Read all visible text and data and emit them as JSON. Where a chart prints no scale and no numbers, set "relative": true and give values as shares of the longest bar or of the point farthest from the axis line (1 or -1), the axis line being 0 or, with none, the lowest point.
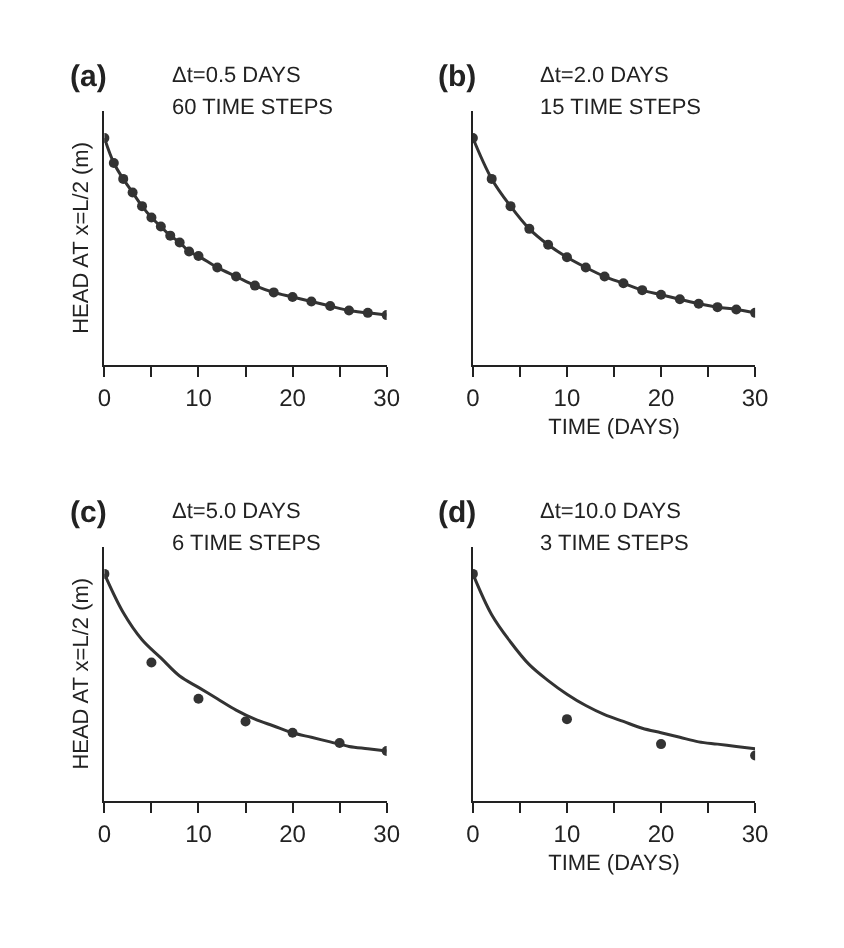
{
  "chart_data": [
    {
      "type": "line",
      "title": "(a)",
      "ylabel": "HEAD AT x=L/2 (m)",
      "relative": true,
      "annotations": [
        "Δt=0.5 DAYS",
        "60 TIME STEPS"
      ],
      "xlim": [
        0,
        30
      ],
      "xticks": [
        0,
        {
          "value": 5,
          "label": null
        },
        10,
        {
          "value": 15,
          "label": null
        },
        20,
        {
          "value": 25,
          "label": null
        },
        30
      ],
      "tick_labels": "x",
      "series": [
        {
          "marker": "circle",
          "color": "#333333",
          "x": [
            0,
            1,
            2,
            3,
            4,
            5,
            6,
            7,
            8,
            9,
            10,
            12,
            14,
            16,
            18,
            20,
            22,
            24,
            26,
            28,
            30
          ],
          "values": [
            1.0,
            0.89,
            0.82,
            0.76,
            0.7,
            0.65,
            0.61,
            0.57,
            0.54,
            0.5,
            0.48,
            0.43,
            0.39,
            0.35,
            0.32,
            0.3,
            0.28,
            0.26,
            0.24,
            0.23,
            0.22
          ]
        }
      ]
    },
    {
      "type": "line",
      "title": "(b)",
      "xlabel": "TIME (DAYS)",
      "relative": true,
      "annotations": [
        "Δt=2.0 DAYS",
        "15 TIME STEPS"
      ],
      "xlim": [
        0,
        30
      ],
      "xticks": [
        0,
        {
          "value": 5,
          "label": null
        },
        10,
        {
          "value": 15,
          "label": null
        },
        20,
        {
          "value": 25,
          "label": null
        },
        30
      ],
      "tick_labels": "x",
      "series": [
        {
          "marker": "circle",
          "color": "#333333",
          "x": [
            0,
            2,
            4,
            6,
            8,
            10,
            12,
            14,
            16,
            18,
            20,
            22,
            24,
            26,
            28,
            30
          ],
          "values": [
            1.0,
            0.82,
            0.7,
            0.6,
            0.53,
            0.475,
            0.43,
            0.39,
            0.36,
            0.33,
            0.31,
            0.29,
            0.27,
            0.255,
            0.245,
            0.23
          ]
        }
      ]
    },
    {
      "type": "line",
      "title": "(c)",
      "ylabel": "HEAD AT x=L/2 (m)",
      "relative": true,
      "annotations": [
        "Δt=5.0 DAYS",
        "6 TIME STEPS"
      ],
      "xlim": [
        0,
        30
      ],
      "xticks": [
        0,
        {
          "value": 5,
          "label": null
        },
        10,
        {
          "value": 15,
          "label": null
        },
        20,
        {
          "value": 25,
          "label": null
        },
        30
      ],
      "tick_labels": "x",
      "series": [
        {
          "marker": "none",
          "color": "#333333",
          "x": [
            0,
            2,
            4,
            6,
            8,
            10,
            12,
            14,
            16,
            18,
            20,
            22,
            24,
            26,
            28,
            30
          ],
          "values": [
            1.0,
            0.83,
            0.71,
            0.63,
            0.55,
            0.5,
            0.45,
            0.4,
            0.36,
            0.33,
            0.3,
            0.28,
            0.26,
            0.24,
            0.23,
            0.22
          ]
        },
        {
          "type": "scatter",
          "marker": "circle",
          "color": "#333333",
          "x": [
            0,
            5,
            10,
            15,
            20,
            25,
            30
          ],
          "values": [
            1.0,
            0.61,
            0.45,
            0.35,
            0.3,
            0.255,
            0.22
          ]
        }
      ]
    },
    {
      "type": "line",
      "title": "(d)",
      "xlabel": "TIME (DAYS)",
      "relative": true,
      "annotations": [
        "Δt=10.0 DAYS",
        "3 TIME STEPS"
      ],
      "xlim": [
        0,
        30
      ],
      "xticks": [
        0,
        {
          "value": 5,
          "label": null
        },
        10,
        {
          "value": 15,
          "label": null
        },
        20,
        {
          "value": 25,
          "label": null
        },
        30
      ],
      "tick_labels": "x",
      "series": [
        {
          "marker": "none",
          "color": "#333333",
          "x": [
            0,
            2,
            4,
            6,
            8,
            10,
            12,
            14,
            16,
            18,
            20,
            22,
            24,
            26,
            28,
            30
          ],
          "values": [
            1.0,
            0.82,
            0.7,
            0.6,
            0.53,
            0.47,
            0.42,
            0.38,
            0.35,
            0.32,
            0.3,
            0.28,
            0.26,
            0.25,
            0.24,
            0.23
          ]
        },
        {
          "type": "scatter",
          "marker": "circle",
          "color": "#333333",
          "x": [
            0,
            10,
            20,
            30
          ],
          "values": [
            1.0,
            0.36,
            0.25,
            0.2
          ]
        }
      ]
    }
  ]
}
